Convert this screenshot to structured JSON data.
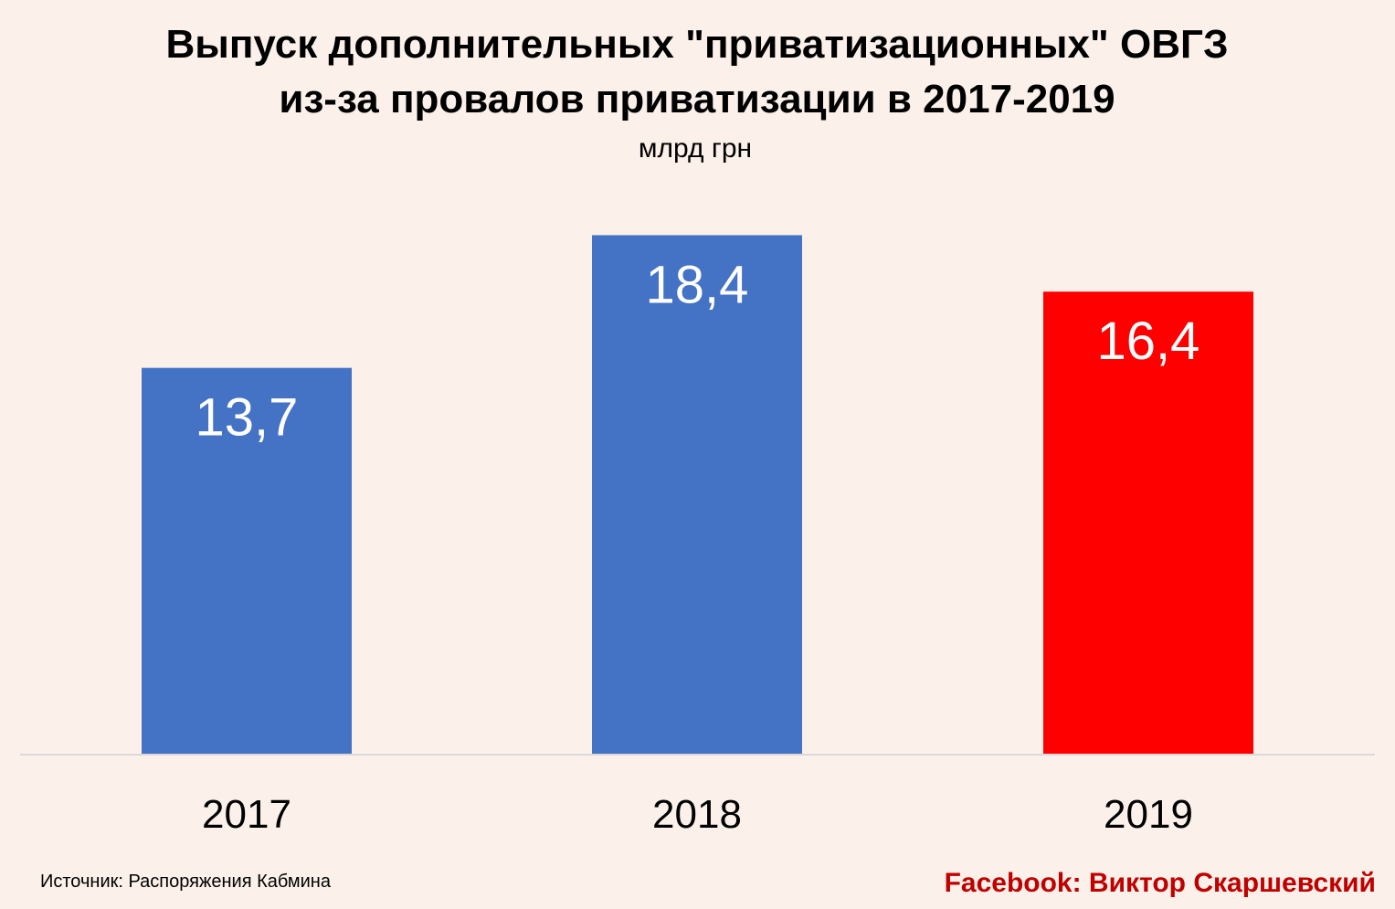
{
  "chart_data": {
    "type": "bar",
    "title_lines": [
      "Выпуск дополнительных \"приватизационных\" ОВГЗ",
      "из-за провалов приватизации в 2017-2019"
    ],
    "subtitle": "млрд грн",
    "categories": [
      "2017",
      "2018",
      "2019"
    ],
    "values": [
      13.7,
      18.4,
      16.4
    ],
    "value_labels": [
      "13,7",
      "18,4",
      "16,4"
    ],
    "bar_colors": [
      "#4472C4",
      "#4472C4",
      "#FF0000"
    ],
    "ylim": [
      0,
      20
    ],
    "grid": false,
    "legend": "none"
  },
  "footer": {
    "source": "Источник: Распоряжения Кабмина",
    "credit": "Facebook: Виктор Скаршевский"
  },
  "colors": {
    "background": "#FBF1EA",
    "axis": "#D9D9D9",
    "credit": "#C00000"
  }
}
